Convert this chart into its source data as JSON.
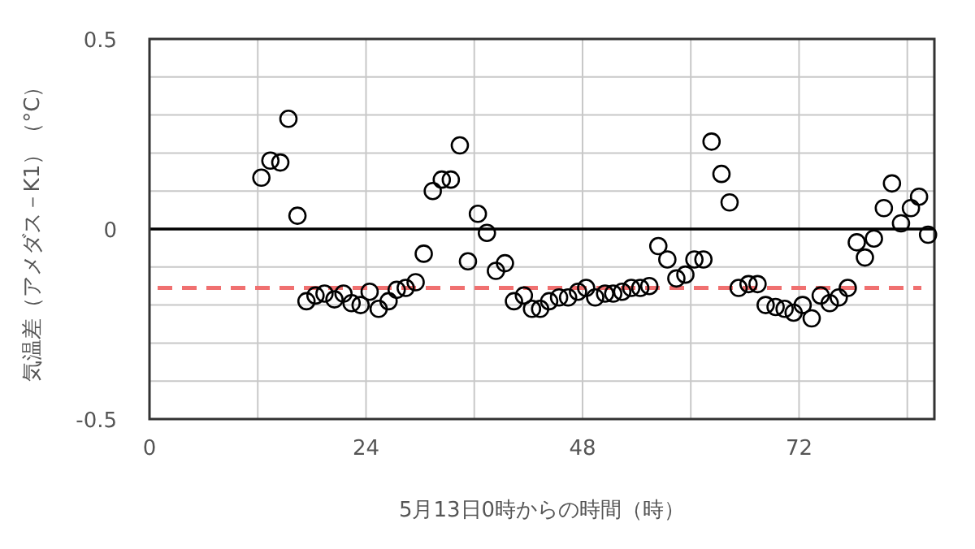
{
  "chart_data": {
    "type": "scatter",
    "xlabel": "5月13日0時からの時間（時）",
    "ylabel": "気温差（アメダス－K1）（°C）",
    "xlim": [
      0,
      87
    ],
    "xticks": [
      0,
      {
        "value": 12,
        "label": null
      },
      24,
      {
        "value": 36,
        "label": null
      },
      48,
      {
        "value": 60,
        "label": null
      },
      72,
      {
        "value": 84,
        "label": null
      }
    ],
    "ylim": [
      -0.5,
      0.5
    ],
    "yticks": [
      -0.5,
      {
        "value": -0.4,
        "label": null
      },
      {
        "value": -0.3,
        "label": null
      },
      {
        "value": -0.2,
        "label": null
      },
      {
        "value": -0.1,
        "label": null
      },
      0,
      {
        "value": 0.1,
        "label": null
      },
      {
        "value": 0.2,
        "label": null
      },
      {
        "value": 0.3,
        "label": null
      },
      {
        "value": 0.4,
        "label": null
      },
      0.5
    ],
    "grid": true,
    "marker": "circle",
    "ref_lines": [
      {
        "axis": "y",
        "value": 0,
        "color": "#000000",
        "line_style": "solid"
      },
      {
        "axis": "y",
        "value": -0.155,
        "color": "#f07070",
        "line_style": "dashed"
      }
    ],
    "series": [
      {
        "color": "#000000",
        "x": [
          12.4,
          13.4,
          14.5,
          15.4,
          16.4,
          17.4,
          18.4,
          19.4,
          20.5,
          21.5,
          22.4,
          23.4,
          24.4,
          25.4,
          26.5,
          27.4,
          28.4,
          29.5,
          30.4,
          31.4,
          32.4,
          33.4,
          34.4,
          35.3,
          36.4,
          37.4,
          38.4,
          39.4,
          40.4,
          41.5,
          42.4,
          43.3,
          44.3,
          45.4,
          46.4,
          47.5,
          48.4,
          49.4,
          50.5,
          51.4,
          52.4,
          53.4,
          54.4,
          55.4,
          56.4,
          57.4,
          58.4,
          59.4,
          60.4,
          61.4,
          62.3,
          63.4,
          64.3,
          65.3,
          66.4,
          67.4,
          68.3,
          69.4,
          70.4,
          71.4,
          72.4,
          73.4,
          74.4,
          75.4,
          76.4,
          77.4,
          78.4,
          79.3,
          80.3,
          81.4,
          82.3,
          83.3,
          84.4,
          85.3,
          86.3
        ],
        "values": [
          0.135,
          0.18,
          0.175,
          0.29,
          0.035,
          -0.19,
          -0.175,
          -0.17,
          -0.185,
          -0.17,
          -0.195,
          -0.2,
          -0.165,
          -0.21,
          -0.19,
          -0.16,
          -0.155,
          -0.14,
          -0.065,
          0.1,
          0.13,
          0.13,
          0.22,
          -0.085,
          0.04,
          -0.01,
          -0.11,
          -0.09,
          -0.19,
          -0.175,
          -0.21,
          -0.21,
          -0.19,
          -0.18,
          -0.18,
          -0.165,
          -0.155,
          -0.18,
          -0.17,
          -0.17,
          -0.165,
          -0.155,
          -0.155,
          -0.15,
          -0.045,
          -0.08,
          -0.13,
          -0.12,
          -0.08,
          -0.08,
          0.23,
          0.145,
          0.07,
          -0.155,
          -0.145,
          -0.145,
          -0.2,
          -0.205,
          -0.21,
          -0.22,
          -0.2,
          -0.235,
          -0.175,
          -0.195,
          -0.18,
          -0.155,
          -0.035,
          -0.075,
          -0.025,
          0.055,
          0.12,
          0.015,
          0.055,
          0.085,
          -0.015
        ]
      }
    ]
  }
}
